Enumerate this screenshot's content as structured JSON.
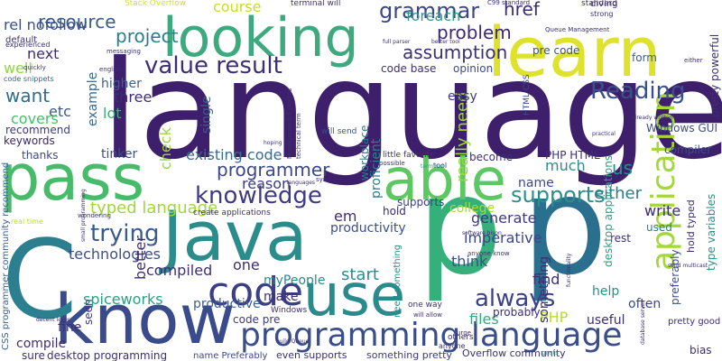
{
  "words": [
    {
      "text": "language",
      "color": "#3e1f6b",
      "rot": 0
    },
    {
      "text": "know",
      "color": "#3a4b8c",
      "rot": 0
    },
    {
      "text": "Java",
      "color": "#2a8d8c",
      "rot": 0
    },
    {
      "text": "pass",
      "color": "#47bb6a",
      "rot": 0
    },
    {
      "text": "p",
      "color": "#35b07a",
      "rot": 0
    },
    {
      "text": "p",
      "color": "#2b6f8e",
      "rot": 0
    },
    {
      "text": "C",
      "color": "#2b7f8e",
      "rot": 0
    },
    {
      "text": "learn",
      "color": "#dfe22c",
      "rot": 0
    },
    {
      "text": "looking",
      "color": "#3ea87e",
      "rot": 0
    },
    {
      "text": "able",
      "color": "#5dc863",
      "rot": 0
    },
    {
      "text": "use",
      "color": "#2b8a8c",
      "rot": 0
    },
    {
      "text": "code",
      "color": "#3b3f86",
      "rot": 0
    },
    {
      "text": "programming language",
      "color": "#3b4e8c",
      "rot": 0
    },
    {
      "text": "application",
      "color": "#a3d73a",
      "rot": -90
    },
    {
      "text": "knowledge",
      "color": "#3e3a84",
      "rot": 0
    },
    {
      "text": "value result",
      "color": "#3e2f75",
      "rot": 0
    },
    {
      "text": "trying",
      "color": "#3a5b8d",
      "rot": 0
    },
    {
      "text": "Reading",
      "color": "#3a4f8b",
      "rot": 0
    },
    {
      "text": "always",
      "color": "#3c4089",
      "rot": 0
    },
    {
      "text": "supports",
      "color": "#2c8e8b",
      "rot": 0
    },
    {
      "text": "grammar",
      "color": "#3d4688",
      "rot": 0
    },
    {
      "text": "problem",
      "color": "#3b2a70",
      "rot": 0
    },
    {
      "text": "project",
      "color": "#2b7c8d",
      "rot": 0
    },
    {
      "text": "assumption",
      "color": "#3c3074",
      "rot": 0
    },
    {
      "text": "programmer",
      "color": "#3d4689",
      "rot": 0
    },
    {
      "text": "technologies",
      "color": "#3c4e8a",
      "rot": 0
    },
    {
      "text": "typed language",
      "color": "#a0d83a",
      "rot": 0
    },
    {
      "text": "resource",
      "color": "#3c5a8b",
      "rot": 0
    },
    {
      "text": "rel nofollow",
      "color": "#3a4f8b",
      "rot": 0
    },
    {
      "text": "foreach",
      "color": "#2f9b87",
      "rot": 0
    },
    {
      "text": "href",
      "color": "#3d2f73",
      "rot": 0
    },
    {
      "text": "course",
      "color": "#c6dc2c",
      "rot": 0
    },
    {
      "text": "reason",
      "color": "#3c3a7f",
      "rot": 0
    },
    {
      "text": "existing code",
      "color": "#3b6a8d",
      "rot": 0
    },
    {
      "text": "want",
      "color": "#2f6d8e",
      "rot": 0
    },
    {
      "text": "next",
      "color": "#3e2e73",
      "rot": 0
    },
    {
      "text": "well",
      "color": "#8fd544",
      "rot": 0
    },
    {
      "text": "etc",
      "color": "#3a5a8c",
      "rot": 0
    },
    {
      "text": "covers",
      "color": "#46bf6b",
      "rot": 0
    },
    {
      "text": "recommend",
      "color": "#3c3a7f",
      "rot": 0
    },
    {
      "text": "keywords",
      "color": "#3a2a6d",
      "rot": 0
    },
    {
      "text": "thanks",
      "color": "#3d4889",
      "rot": 0
    },
    {
      "text": "tinker",
      "color": "#3b4f8b",
      "rot": 0
    },
    {
      "text": "lot",
      "color": "#3ab079",
      "rot": 0
    },
    {
      "text": "three",
      "color": "#3e2e73",
      "rot": 0
    },
    {
      "text": "higher",
      "color": "#3c5f8d",
      "rot": 0
    },
    {
      "text": "example",
      "color": "#3b6a8d",
      "rot": -90
    },
    {
      "text": "better",
      "color": "#3d2f73",
      "rot": -90
    },
    {
      "text": "check",
      "color": "#9cd63d",
      "rot": -90
    },
    {
      "text": "single",
      "color": "#3c5f8d",
      "rot": -90
    },
    {
      "text": "compiled",
      "color": "#3e2e73",
      "rot": 0
    },
    {
      "text": "spiceworks",
      "color": "#2e9e86",
      "rot": 0
    },
    {
      "text": "productive",
      "color": "#3c5f8d",
      "rot": 0
    },
    {
      "text": "compile",
      "color": "#3d2f73",
      "rot": 0
    },
    {
      "text": "fine",
      "color": "#3d2f73",
      "rot": 0
    },
    {
      "text": "seen",
      "color": "#3b3a80",
      "rot": -90
    },
    {
      "text": "one",
      "color": "#3e2e73",
      "rot": 0
    },
    {
      "text": "make",
      "color": "#3d2f73",
      "rot": 0
    },
    {
      "text": "myPeople",
      "color": "#2b8b8c",
      "rot": 0
    },
    {
      "text": "code pre",
      "color": "#3d3a7f",
      "rot": 0
    },
    {
      "text": "start",
      "color": "#2c8e8b",
      "rot": 0
    },
    {
      "text": "think",
      "color": "#3b4f8b",
      "rot": 0
    },
    {
      "text": "find",
      "color": "#3e2e73",
      "rot": 0
    },
    {
      "text": "files",
      "color": "#34a882",
      "rot": 0
    },
    {
      "text": "PHP",
      "color": "#b5de2b",
      "rot": 0
    },
    {
      "text": "much",
      "color": "#2c8e8b",
      "rot": 0
    },
    {
      "text": "name",
      "color": "#3d4889",
      "rot": 0
    },
    {
      "text": "either",
      "color": "#2b7c8d",
      "rot": 0
    },
    {
      "text": "us",
      "color": "#2c8e8b",
      "rot": 0
    },
    {
      "text": "write",
      "color": "#3a2a6d",
      "rot": 0
    },
    {
      "text": "generate",
      "color": "#3c3a7f",
      "rot": 0
    },
    {
      "text": "imperative",
      "color": "#3d4689",
      "rot": 0
    },
    {
      "text": "em",
      "color": "#3e2e73",
      "rot": 0
    },
    {
      "text": "hold",
      "color": "#3a2a6d",
      "rot": 0
    },
    {
      "text": "college",
      "color": "#a8db34",
      "rot": 0
    },
    {
      "text": "productivity",
      "color": "#3b4f8b",
      "rot": 0
    },
    {
      "text": "really need",
      "color": "#9cd63d",
      "rot": -90
    },
    {
      "text": "easy",
      "color": "#3c3a7f",
      "rot": 0
    },
    {
      "text": "become",
      "color": "#3e2e73",
      "rot": 0
    },
    {
      "text": "help",
      "color": "#2c8e8b",
      "rot": 0
    },
    {
      "text": "useful",
      "color": "#3e2e73",
      "rot": 0
    },
    {
      "text": "often",
      "color": "#3d4689",
      "rot": 0
    },
    {
      "text": "probably",
      "color": "#3d2f73",
      "rot": 0
    },
    {
      "text": "something",
      "color": "#3d2f73",
      "rot": -90
    },
    {
      "text": "rest",
      "color": "#3d2f73",
      "rot": 0
    },
    {
      "text": "used",
      "color": "#2b7c8d",
      "rot": 0
    },
    {
      "text": "supports",
      "color": "#3b3f86",
      "rot": 0
    },
    {
      "text": "compiler",
      "color": "#3c4e8a",
      "rot": 0
    },
    {
      "text": "bias",
      "color": "#3d2f73",
      "rot": 0
    },
    {
      "text": "pre code",
      "color": "#3a4f8b",
      "rot": 0
    },
    {
      "text": "form",
      "color": "#3b5f8c",
      "rot": 0
    },
    {
      "text": "opinion",
      "color": "#3c4e8a",
      "rot": 0
    },
    {
      "text": "code base",
      "color": "#3d2f73",
      "rot": 0
    },
    {
      "text": "Windows GUI",
      "color": "#3b4f8b",
      "rot": 0
    },
    {
      "text": "PHP HTML",
      "color": "#3d2f73",
      "rot": 0
    },
    {
      "text": "type variables",
      "color": "#2c8e8b",
      "rot": -90
    },
    {
      "text": "pretty powerful",
      "color": "#3d2f73",
      "rot": -90
    },
    {
      "text": "proficient",
      "color": "#2b7c8d",
      "rot": -90
    },
    {
      "text": "workplace",
      "color": "#2b7c8d",
      "rot": -90
    },
    {
      "text": "desktop applications",
      "color": "#2e9e86",
      "rot": -90
    },
    {
      "text": "preferably",
      "color": "#3a4f8b",
      "rot": -90
    },
    {
      "text": "hold typed",
      "color": "#3d2f73",
      "rot": -90
    },
    {
      "text": "Overflow community",
      "color": "#3d2f73",
      "rot": 0
    },
    {
      "text": "something pretty",
      "color": "#3c3a7f",
      "rot": 0
    },
    {
      "text": "even supports",
      "color": "#3d2f73",
      "rot": 0
    },
    {
      "text": "sure",
      "color": "#3e2e73",
      "rot": 0
    },
    {
      "text": "desktop programming",
      "color": "#3d2f73",
      "rot": 0
    },
    {
      "text": "name Preferably",
      "color": "#3d4689",
      "rot": 0
    },
    {
      "text": "CSS programmer community recommend",
      "color": "#3b5f8c",
      "rot": -90
    },
    {
      "text": "create applications",
      "color": "#3d2f73",
      "rot": 0
    },
    {
      "text": "Stack Overflow",
      "color": "#d3e12a",
      "rot": 0
    },
    {
      "text": "terminal will",
      "color": "#3d2f73",
      "rot": 0
    },
    {
      "text": "C99 standard",
      "color": "#3d2f73",
      "rot": 0
    },
    {
      "text": "default",
      "color": "#3d2f73",
      "rot": 0
    },
    {
      "text": "real time",
      "color": "#b5de2b",
      "rot": 0
    },
    {
      "text": "need something",
      "color": "#2c8e8b",
      "rot": -90
    },
    {
      "text": "pretty good",
      "color": "#3d2f73",
      "rot": 0
    },
    {
      "text": "Windows",
      "color": "#3d2f73",
      "rot": 0
    },
    {
      "text": "diving",
      "color": "#3d2f73",
      "rot": 0
    },
    {
      "text": "standard",
      "color": "#3d2f73",
      "rot": 0
    },
    {
      "text": "strong",
      "color": "#3d2f73",
      "rot": 0
    },
    {
      "text": "will send",
      "color": "#3b4f8b",
      "rot": 0
    },
    {
      "text": "experienced",
      "color": "#3d2f73",
      "rot": 0
    },
    {
      "text": "code snippets",
      "color": "#3b5f8c",
      "rot": 0
    },
    {
      "text": "english",
      "color": "#3d2f73",
      "rot": 0
    },
    {
      "text": "others",
      "color": "#3d2f73",
      "rot": 0
    },
    {
      "text": "anyone",
      "color": "#3d2f73",
      "rot": 0
    },
    {
      "text": "one way",
      "color": "#3d2f73",
      "rot": 0
    },
    {
      "text": "little favorite",
      "color": "#3d2f73",
      "rot": 0
    },
    {
      "text": "possible",
      "color": "#3d2f73",
      "rot": 0
    },
    {
      "text": "tool",
      "color": "#3d2f73",
      "rot": 0
    },
    {
      "text": "HTML CSS",
      "color": "#3b4f8b",
      "rot": -90
    },
    {
      "text": "Queue Management",
      "color": "#3d2f73",
      "rot": 0
    },
    {
      "text": "better tool",
      "color": "#3d2f73",
      "rot": 0
    },
    {
      "text": "full parser",
      "color": "#3d2f73",
      "rot": 0
    },
    {
      "text": "quickly",
      "color": "#3d2f73",
      "rot": 0
    },
    {
      "text": "Management Systems",
      "color": "#3d2f73",
      "rot": -90
    },
    {
      "text": "technical term",
      "color": "#3d2f73",
      "rot": -90
    },
    {
      "text": "messaging",
      "color": "#3d2f73",
      "rot": 0
    },
    {
      "text": "software bison",
      "color": "#3d2f73",
      "rot": 0
    },
    {
      "text": "anyone know",
      "color": "#3d2f73",
      "rot": 0
    },
    {
      "text": "build Queue",
      "color": "#3d2f73",
      "rot": 0
    },
    {
      "text": "practical",
      "color": "#3d2f73",
      "rot": 0
    },
    {
      "text": "already written",
      "color": "#3d2f73",
      "rot": 0
    },
    {
      "text": "send multicast",
      "color": "#3d2f73",
      "rot": 0
    },
    {
      "text": "database server",
      "color": "#3d2f73",
      "rot": -90
    },
    {
      "text": "decent lexer",
      "color": "#3d2f73",
      "rot": 0
    },
    {
      "text": "small programming",
      "color": "#3d2f73",
      "rot": -90
    },
    {
      "text": "wondering",
      "color": "#3d2f73",
      "rot": 0
    },
    {
      "text": "hoping",
      "color": "#3d2f73",
      "rot": 0
    },
    {
      "text": "languages",
      "color": "#3d2f73",
      "rot": 0
    },
    {
      "text": "sync",
      "color": "#3d2f73",
      "rot": 0
    },
    {
      "text": "will allow",
      "color": "#3d2f73",
      "rot": 0
    },
    {
      "text": "urge",
      "color": "#3d2f73",
      "rot": 0
    },
    {
      "text": "either",
      "color": "#3d2f73",
      "rot": 0
    },
    {
      "text": "functionality",
      "color": "#3d2f73",
      "rot": -90
    },
    {
      "text": "terminal",
      "color": "#2e9e86",
      "rot": 0
    },
    {
      "text": "posts",
      "color": "#2e9e86",
      "rot": 0
    }
  ]
}
